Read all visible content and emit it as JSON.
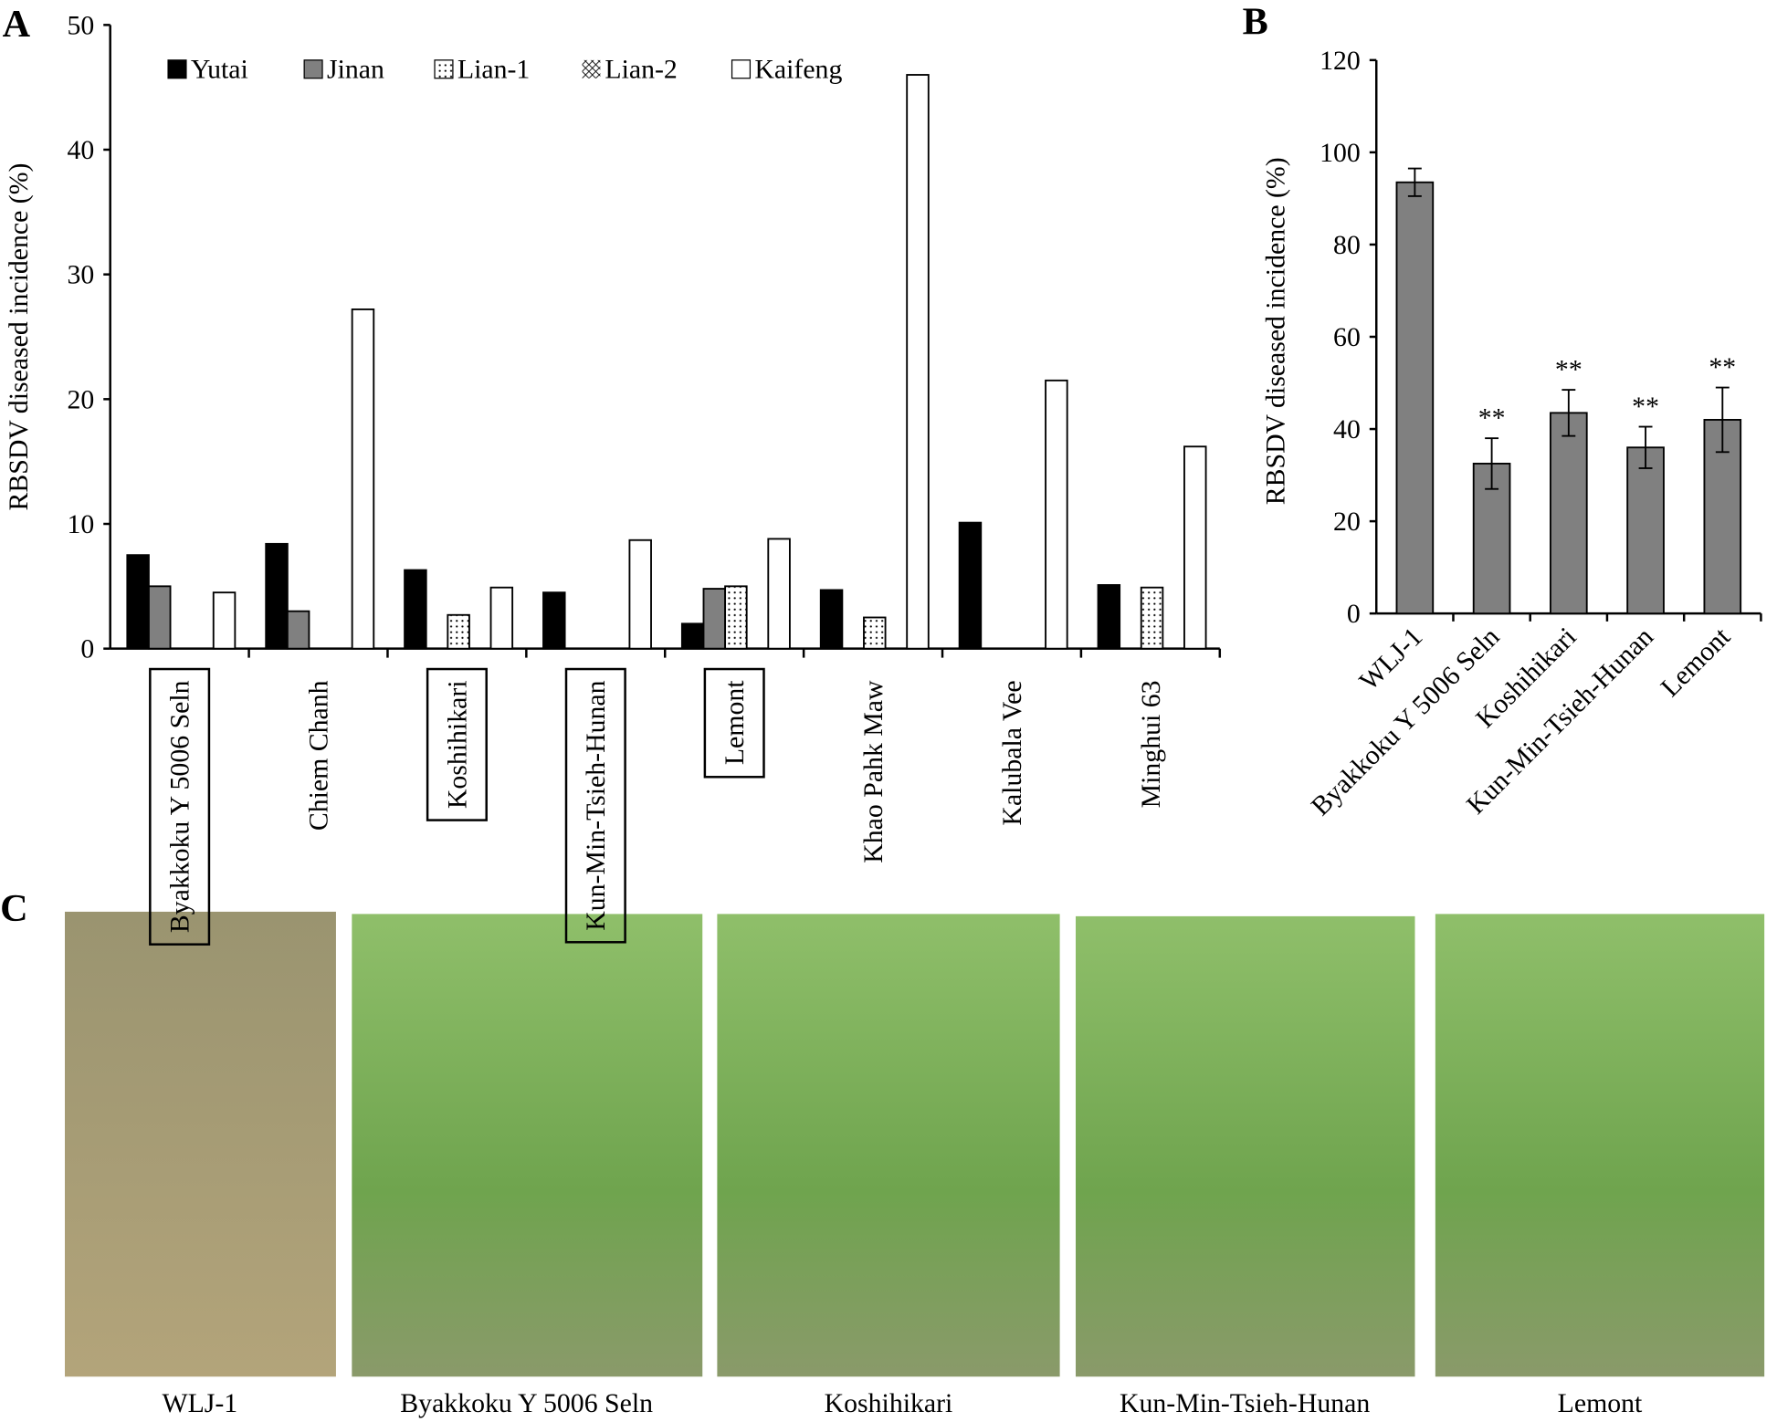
{
  "chart_data": [
    {
      "type": "grouped-bar",
      "panel_label": "A",
      "y_label": "RBSDV diseased incidence (%)",
      "categories": [
        "Byakkoku Y 5006 Seln",
        "Chiem Chanh",
        "Koshihikari",
        "Kun-Min-Tsieh-Hunan",
        "Lemont",
        "Khao Pahk Maw",
        "Kalubala Vee",
        "Minghui 63"
      ],
      "boxed": [
        true,
        false,
        true,
        true,
        true,
        false,
        false,
        false
      ],
      "series": [
        {
          "name": "Yutai",
          "color": "#000000",
          "pattern": "solid",
          "values": [
            7.5,
            8.4,
            6.3,
            4.5,
            2,
            4.7,
            10.1,
            5.1
          ]
        },
        {
          "name": "Jinan",
          "color": "#808080",
          "pattern": "solid",
          "values": [
            5,
            3,
            0,
            0,
            4.8,
            0,
            0,
            0
          ]
        },
        {
          "name": "Lian-1",
          "color": "#ffffff",
          "pattern": "dots",
          "values": [
            0,
            0,
            2.7,
            0,
            5,
            2.5,
            0,
            4.9
          ]
        },
        {
          "name": "Lian-2",
          "color": "#ffffff",
          "pattern": "cross",
          "values": [
            0,
            0,
            0,
            0,
            0,
            0,
            0,
            0
          ]
        },
        {
          "name": "Kaifeng",
          "color": "#ffffff",
          "pattern": "solid",
          "values": [
            4.5,
            27.2,
            4.9,
            8.7,
            8.8,
            46,
            21.5,
            16.2
          ]
        }
      ],
      "ylim": [
        0,
        50
      ],
      "yticks": [
        0,
        10,
        20,
        30,
        40,
        50
      ],
      "legend": "top"
    },
    {
      "type": "bar",
      "panel_label": "B",
      "y_label": "RBSDV diseased incidence (%)",
      "categories": [
        "WLJ-1",
        "Byakkoku Y 5006 Seln",
        "Koshihikari",
        "Kun-Min-Tsieh-Hunan",
        "Lemont"
      ],
      "values": [
        93.5,
        32.5,
        43.5,
        36,
        42
      ],
      "errors": [
        3,
        5.5,
        5,
        4.5,
        7
      ],
      "annotations": [
        null,
        "**",
        "**",
        "**",
        "**"
      ],
      "color": "#808080",
      "ylim": [
        0,
        120
      ],
      "yticks": [
        0,
        20,
        40,
        60,
        80,
        100,
        120
      ]
    }
  ],
  "photos": {
    "panel_label": "C",
    "captions": [
      "WLJ-1",
      "Byakkoku Y 5006 Seln",
      "Koshihikari",
      "Kun-Min-Tsieh-Hunan",
      "Lemont"
    ]
  }
}
